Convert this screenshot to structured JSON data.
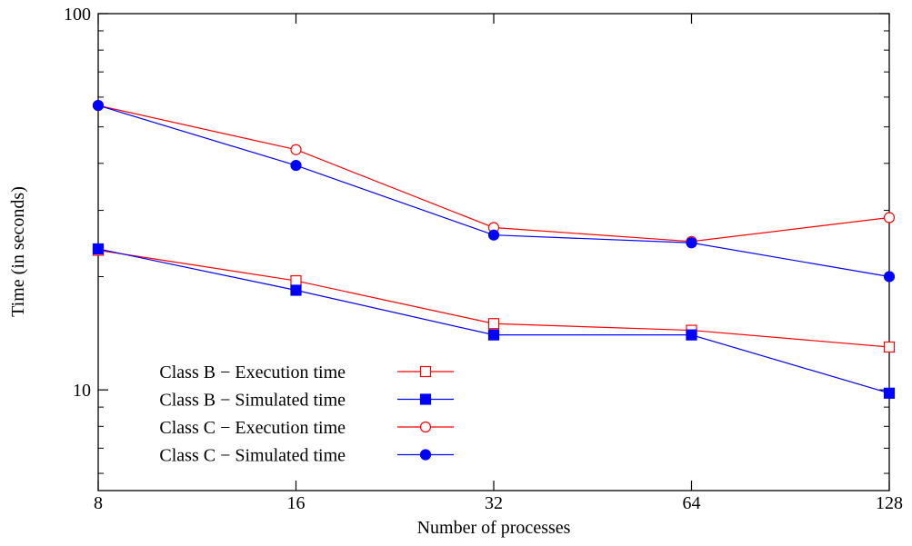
{
  "chart_data": {
    "type": "line",
    "xlabel": "Number of processes",
    "ylabel": "Time (in seconds)",
    "x_scale": "log2",
    "y_scale": "log10",
    "xlim": [
      8,
      128
    ],
    "ylim": [
      5.4,
      100
    ],
    "x": [
      8,
      16,
      32,
      64,
      128
    ],
    "x_tick_labels": [
      "8",
      "16",
      "32",
      "64",
      "128"
    ],
    "y_tick_labels": [
      "10",
      "100"
    ],
    "y_major_ticks": [
      10,
      100
    ],
    "y_minor_ticks": [
      6,
      7,
      8,
      9,
      20,
      30,
      40,
      50,
      60,
      70,
      80,
      90
    ],
    "grid": false,
    "legend_position": "bottom-left",
    "series": [
      {
        "name": "Class B − Execution time",
        "color": "#ff0000",
        "marker": "open-square",
        "values": [
          23.5,
          19.5,
          15.0,
          14.4,
          13.0
        ]
      },
      {
        "name": "Class B − Simulated time",
        "color": "#0000ff",
        "marker": "filled-square",
        "values": [
          23.7,
          18.4,
          14.0,
          14.0,
          9.8
        ]
      },
      {
        "name": "Class C − Execution time",
        "color": "#ff0000",
        "marker": "open-circle",
        "values": [
          57.0,
          43.5,
          27.0,
          24.8,
          28.7
        ]
      },
      {
        "name": "Class C − Simulated time",
        "color": "#0000ff",
        "marker": "filled-circle",
        "values": [
          57.0,
          39.5,
          25.8,
          24.6,
          20.0
        ]
      }
    ]
  }
}
